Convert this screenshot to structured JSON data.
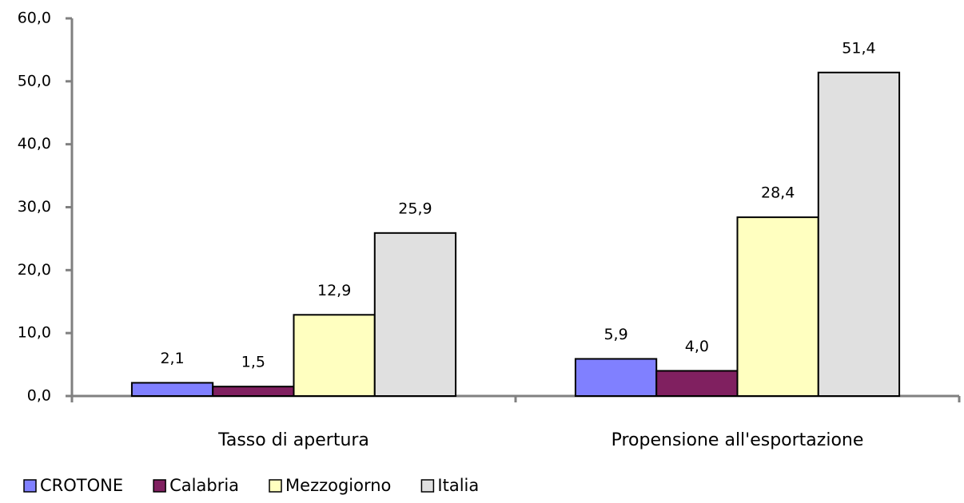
{
  "chart_data": {
    "type": "bar",
    "categories": [
      "Tasso di apertura",
      "Propensione all'esportazione"
    ],
    "series": [
      {
        "name": "CROTONE",
        "color": "#8080ff",
        "values": [
          2.1,
          5.9
        ],
        "value_labels": [
          "2,1",
          "5,9"
        ]
      },
      {
        "name": "Calabria",
        "color": "#802060",
        "values": [
          1.5,
          4.0
        ],
        "value_labels": [
          "1,5",
          "4,0"
        ]
      },
      {
        "name": "Mezzogiorno",
        "color": "#ffffc0",
        "values": [
          12.9,
          28.4
        ],
        "value_labels": [
          "12,9",
          "28,4"
        ]
      },
      {
        "name": "Italia",
        "color": "#e0e0e0",
        "values": [
          25.9,
          51.4
        ],
        "value_labels": [
          "25,9",
          "51,4"
        ]
      }
    ],
    "ylim": [
      0,
      60
    ],
    "yticks": [
      {
        "value": 0,
        "label": "0,0"
      },
      {
        "value": 10,
        "label": "10,0"
      },
      {
        "value": 20,
        "label": "20,0"
      },
      {
        "value": 30,
        "label": "30,0"
      },
      {
        "value": 40,
        "label": "40,0"
      },
      {
        "value": 50,
        "label": "50,0"
      },
      {
        "value": 60,
        "label": "60,0"
      }
    ],
    "grid": false,
    "legend": "bottom"
  }
}
